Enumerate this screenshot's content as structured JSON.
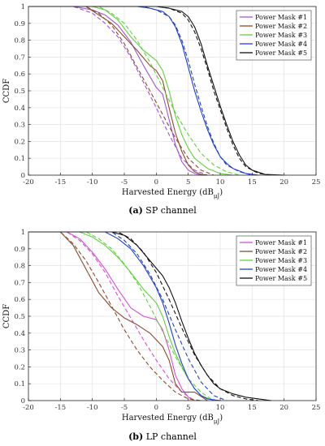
{
  "chart_data": [
    {
      "type": "line",
      "caption_tag": "(a)",
      "caption_text": "SP channel",
      "xlabel": "Harvested Energy (dB",
      "xlabel_sub": "μJ",
      "xlabel_close": ")",
      "ylabel": "CCDF",
      "xlim": [
        -20,
        25
      ],
      "ylim": [
        0,
        1
      ],
      "xticks": [
        -20,
        -15,
        -10,
        -5,
        0,
        5,
        10,
        15,
        20,
        25
      ],
      "yticks": [
        0,
        0.1,
        0.2,
        0.3,
        0.4,
        0.5,
        0.6,
        0.7,
        0.8,
        0.9,
        1
      ],
      "grid": true,
      "legend_position": "top-right",
      "series": [
        {
          "name": "Power Mask #1",
          "color": "#a154d6",
          "dashed": false,
          "x": [
            -20,
            -13,
            -10,
            -8,
            -6,
            -4,
            -2,
            0,
            1,
            2,
            3,
            4,
            5,
            6,
            7,
            8
          ],
          "y": [
            1,
            1,
            0.98,
            0.95,
            0.89,
            0.79,
            0.65,
            0.52,
            0.48,
            0.33,
            0.18,
            0.08,
            0.03,
            0.01,
            0,
            0
          ]
        },
        {
          "name": "Power Mask #1",
          "color": "#a154d6",
          "dashed": true,
          "x": [
            -20,
            -13,
            -10,
            -8,
            -6,
            -4,
            -2,
            0,
            2,
            4,
            6,
            8
          ],
          "y": [
            1,
            1,
            0.96,
            0.9,
            0.82,
            0.7,
            0.55,
            0.4,
            0.24,
            0.1,
            0.03,
            0
          ]
        },
        {
          "name": "Power Mask #2",
          "color": "#8b4a2b",
          "dashed": false,
          "x": [
            -20,
            -11,
            -9,
            -7,
            -5,
            -3,
            -1,
            0,
            1,
            2,
            3,
            4,
            5,
            6,
            7,
            8
          ],
          "y": [
            1,
            1,
            0.95,
            0.9,
            0.82,
            0.74,
            0.65,
            0.62,
            0.56,
            0.4,
            0.25,
            0.14,
            0.06,
            0.02,
            0.005,
            0
          ]
        },
        {
          "name": "Power Mask #2",
          "color": "#8b4a2b",
          "dashed": true,
          "x": [
            -20,
            -11,
            -9,
            -7,
            -5,
            -3,
            -1,
            1,
            3,
            5,
            7,
            9
          ],
          "y": [
            1,
            1,
            0.96,
            0.89,
            0.78,
            0.64,
            0.5,
            0.36,
            0.22,
            0.1,
            0.03,
            0
          ]
        },
        {
          "name": "Power Mask #3",
          "color": "#5fd13a",
          "dashed": false,
          "x": [
            -20,
            -10,
            -8,
            -6,
            -4,
            -2,
            0,
            1,
            2,
            3,
            4,
            5,
            6,
            8,
            10,
            12
          ],
          "y": [
            1,
            1,
            0.98,
            0.92,
            0.82,
            0.74,
            0.68,
            0.62,
            0.5,
            0.35,
            0.24,
            0.16,
            0.1,
            0.04,
            0.01,
            0
          ]
        },
        {
          "name": "Power Mask #3",
          "color": "#5fd13a",
          "dashed": true,
          "x": [
            -20,
            -9,
            -7,
            -5,
            -3,
            -1,
            1,
            3,
            5,
            7,
            9,
            11,
            13
          ],
          "y": [
            1,
            1,
            0.96,
            0.9,
            0.8,
            0.67,
            0.52,
            0.37,
            0.24,
            0.13,
            0.06,
            0.02,
            0
          ]
        },
        {
          "name": "Power Mask #4",
          "color": "#1f3fd1",
          "dashed": false,
          "x": [
            -20,
            -3,
            -1,
            1,
            2,
            3,
            4,
            5,
            6,
            7,
            8,
            9,
            10,
            11,
            12,
            14,
            16
          ],
          "y": [
            1,
            1,
            0.99,
            0.97,
            0.94,
            0.88,
            0.78,
            0.64,
            0.5,
            0.38,
            0.27,
            0.18,
            0.11,
            0.07,
            0.04,
            0.01,
            0
          ]
        },
        {
          "name": "Power Mask #4",
          "color": "#1f3fd1",
          "dashed": true,
          "x": [
            -20,
            -2,
            0,
            2,
            3,
            4,
            5,
            6,
            7,
            8,
            9,
            10,
            11,
            13,
            15
          ],
          "y": [
            1,
            1,
            0.98,
            0.94,
            0.89,
            0.8,
            0.68,
            0.54,
            0.41,
            0.29,
            0.19,
            0.11,
            0.06,
            0.02,
            0
          ]
        },
        {
          "name": "Power Mask #5",
          "color": "#111111",
          "dashed": false,
          "x": [
            -20,
            0,
            2,
            4,
            5,
            6,
            7,
            8,
            9,
            10,
            11,
            12,
            13,
            14,
            15,
            17,
            20
          ],
          "y": [
            1,
            1,
            0.99,
            0.97,
            0.94,
            0.88,
            0.78,
            0.65,
            0.53,
            0.41,
            0.3,
            0.2,
            0.12,
            0.06,
            0.03,
            0.005,
            0
          ]
        },
        {
          "name": "Power Mask #5",
          "color": "#111111",
          "dashed": true,
          "x": [
            -20,
            0,
            2,
            4,
            5,
            6,
            7,
            8,
            9,
            10,
            11,
            12,
            13,
            14,
            16,
            18
          ],
          "y": [
            1,
            1,
            0.99,
            0.96,
            0.92,
            0.85,
            0.75,
            0.63,
            0.5,
            0.39,
            0.28,
            0.18,
            0.1,
            0.05,
            0.01,
            0
          ]
        }
      ]
    },
    {
      "type": "line",
      "caption_tag": "(b)",
      "caption_text": "LP channel",
      "xlabel": "Harvested Energy (dB",
      "xlabel_sub": "μJ",
      "xlabel_close": ")",
      "ylabel": "CCDF",
      "xlim": [
        -20,
        25
      ],
      "ylim": [
        0,
        1
      ],
      "xticks": [
        -20,
        -15,
        -10,
        -5,
        0,
        5,
        10,
        15,
        20,
        25
      ],
      "yticks": [
        0,
        0.1,
        0.2,
        0.3,
        0.4,
        0.5,
        0.6,
        0.7,
        0.8,
        0.9,
        1
      ],
      "grid": true,
      "legend_position": "top-right",
      "series": [
        {
          "name": "Power Mask #1",
          "color": "#d64fd6",
          "dashed": false,
          "x": [
            -20,
            -14,
            -12,
            -10,
            -8,
            -6,
            -4,
            -2,
            0,
            1,
            2,
            3,
            4,
            5,
            6
          ],
          "y": [
            1,
            1,
            0.96,
            0.88,
            0.78,
            0.66,
            0.55,
            0.5,
            0.48,
            0.42,
            0.3,
            0.15,
            0.07,
            0.02,
            0
          ]
        },
        {
          "name": "Power Mask #1",
          "color": "#d64fd6",
          "dashed": true,
          "x": [
            -20,
            -14,
            -12,
            -10,
            -8,
            -6,
            -4,
            -2,
            0,
            2,
            4,
            6
          ],
          "y": [
            1,
            1,
            0.95,
            0.87,
            0.76,
            0.62,
            0.49,
            0.36,
            0.24,
            0.13,
            0.05,
            0
          ]
        },
        {
          "name": "Power Mask #2",
          "color": "#8b4a2b",
          "dashed": false,
          "x": [
            -20,
            -15,
            -13,
            -11,
            -9,
            -7,
            -5,
            -3,
            -1,
            1,
            2,
            3,
            4,
            6,
            8
          ],
          "y": [
            1,
            1,
            0.92,
            0.78,
            0.64,
            0.55,
            0.49,
            0.45,
            0.4,
            0.32,
            0.24,
            0.1,
            0.05,
            0.05,
            0
          ]
        },
        {
          "name": "Power Mask #2",
          "color": "#8b4a2b",
          "dashed": true,
          "x": [
            -20,
            -15,
            -13,
            -11,
            -9,
            -7,
            -5,
            -3,
            -1,
            1,
            3,
            5,
            7
          ],
          "y": [
            1,
            1,
            0.93,
            0.83,
            0.7,
            0.56,
            0.42,
            0.3,
            0.2,
            0.12,
            0.05,
            0.01,
            0
          ]
        },
        {
          "name": "Power Mask #3",
          "color": "#5fd13a",
          "dashed": false,
          "x": [
            -20,
            -12,
            -10,
            -8,
            -6,
            -4,
            -2,
            0,
            1,
            2,
            3,
            4,
            5,
            6,
            7,
            9
          ],
          "y": [
            1,
            1,
            0.97,
            0.92,
            0.85,
            0.76,
            0.66,
            0.58,
            0.5,
            0.38,
            0.28,
            0.2,
            0.13,
            0.07,
            0.03,
            0
          ]
        },
        {
          "name": "Power Mask #3",
          "color": "#5fd13a",
          "dashed": true,
          "x": [
            -20,
            -11,
            -9,
            -7,
            -5,
            -3,
            -1,
            1,
            3,
            5,
            7,
            9
          ],
          "y": [
            1,
            1,
            0.96,
            0.9,
            0.81,
            0.7,
            0.56,
            0.41,
            0.26,
            0.13,
            0.05,
            0
          ]
        },
        {
          "name": "Power Mask #4",
          "color": "#1f3fd1",
          "dashed": false,
          "x": [
            -20,
            -8,
            -6,
            -4,
            -2,
            0,
            1,
            2,
            3,
            4,
            5,
            6,
            7,
            8,
            10
          ],
          "y": [
            1,
            1,
            0.96,
            0.9,
            0.8,
            0.67,
            0.58,
            0.46,
            0.33,
            0.22,
            0.13,
            0.07,
            0.03,
            0.01,
            0
          ]
        },
        {
          "name": "Power Mask #4",
          "color": "#1f3fd1",
          "dashed": true,
          "x": [
            -20,
            -7,
            -5,
            -3,
            -1,
            1,
            3,
            5,
            7,
            9,
            11
          ],
          "y": [
            1,
            1,
            0.95,
            0.87,
            0.75,
            0.6,
            0.42,
            0.25,
            0.11,
            0.03,
            0
          ]
        },
        {
          "name": "Power Mask #5",
          "color": "#111111",
          "dashed": false,
          "x": [
            -20,
            -7,
            -5,
            -3,
            -1,
            1,
            2,
            3,
            4,
            5,
            6,
            7,
            8,
            9,
            10,
            12,
            14,
            16,
            18
          ],
          "y": [
            1,
            1,
            0.98,
            0.92,
            0.83,
            0.74,
            0.67,
            0.58,
            0.47,
            0.37,
            0.28,
            0.21,
            0.15,
            0.1,
            0.07,
            0.04,
            0.02,
            0.01,
            0
          ]
        },
        {
          "name": "Power Mask #5",
          "color": "#111111",
          "dashed": true,
          "x": [
            -20,
            -6,
            -4,
            -2,
            0,
            2,
            4,
            6,
            8,
            10,
            12,
            14,
            16
          ],
          "y": [
            1,
            1,
            0.96,
            0.88,
            0.76,
            0.6,
            0.43,
            0.27,
            0.15,
            0.07,
            0.03,
            0.01,
            0
          ]
        }
      ]
    }
  ]
}
